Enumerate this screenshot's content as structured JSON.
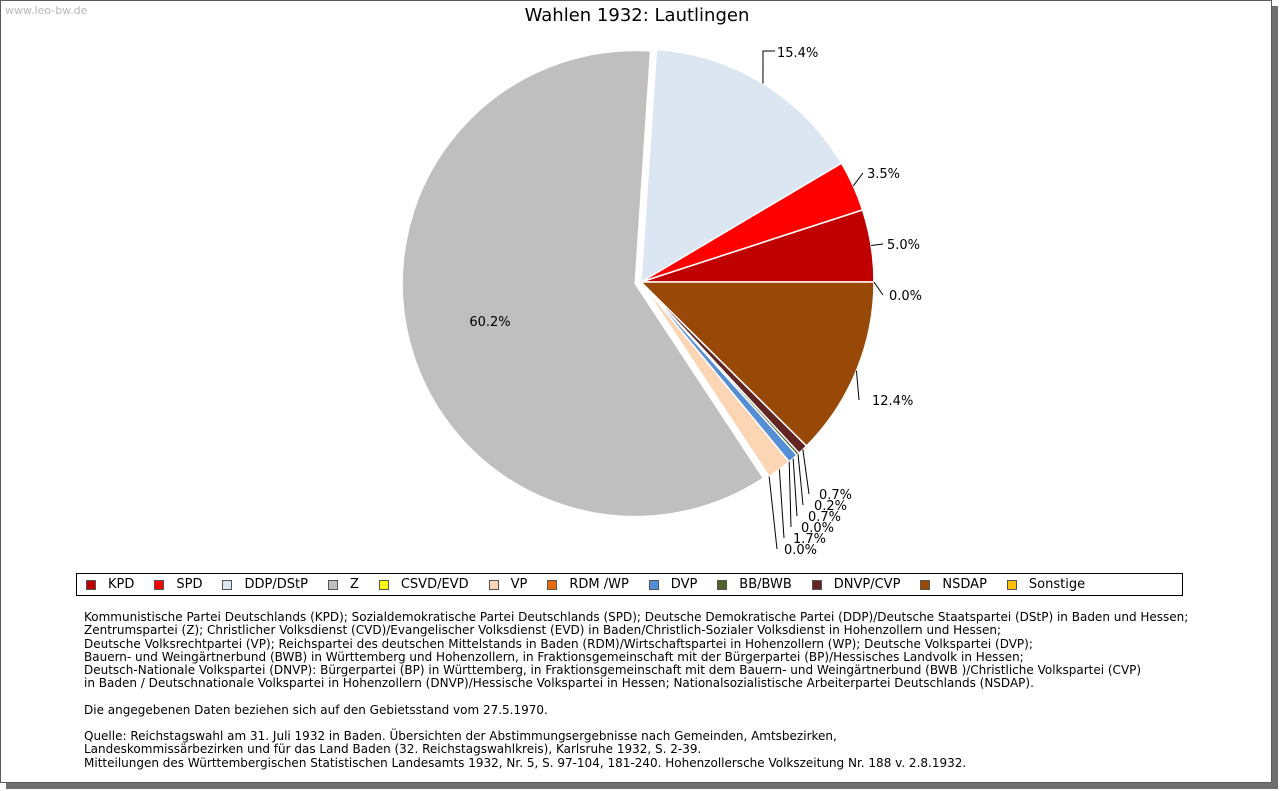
{
  "watermark": "www.leo-bw.de",
  "chart_data": {
    "type": "pie",
    "title": "Wahlen 1932: Lautlingen",
    "slices": [
      {
        "name": "KPD",
        "value": 5.0,
        "label": "5.0%",
        "color": "#c00000"
      },
      {
        "name": "SPD",
        "value": 3.5,
        "label": "3.5%",
        "color": "#ff0000"
      },
      {
        "name": "DDP/DStP",
        "value": 15.4,
        "label": "15.4%",
        "color": "#dce6f2"
      },
      {
        "name": "Z",
        "value": 60.2,
        "label": "60.2%",
        "color": "#bfbfbf"
      },
      {
        "name": "CSVD/EVD",
        "value": 0.0,
        "label": "0.0%",
        "color": "#ffff00"
      },
      {
        "name": "VP",
        "value": 1.7,
        "label": "1.7%",
        "color": "#fcd5b5"
      },
      {
        "name": "RDM /WP",
        "value": 0.0,
        "label": "0.0%",
        "color": "#e46c0a"
      },
      {
        "name": "DVP",
        "value": 0.7,
        "label": "0.7%",
        "color": "#558ed5"
      },
      {
        "name": "BB/BWB",
        "value": 0.2,
        "label": "0.2%",
        "color": "#4f6228"
      },
      {
        "name": "DNVP/CVP",
        "value": 0.7,
        "label": "0.7%",
        "color": "#632523"
      },
      {
        "name": "NSDAP",
        "value": 12.4,
        "label": "12.4%",
        "color": "#984807"
      },
      {
        "name": "Sonstige",
        "value": 0.0,
        "label": "0.0%",
        "color": "#ffc000"
      }
    ],
    "legend_position": "bottom"
  },
  "notes": {
    "parties": [
      "Kommunistische Partei Deutschlands (KPD); Sozialdemokratische Partei Deutschlands (SPD); Deutsche Demokratische Partei (DDP)/Deutsche Staatspartei (DStP) in Baden und Hessen;",
      "Zentrumspartei (Z); Christlicher Volksdienst (CVD)/Evangelischer Volksdienst (EVD) in Baden/Christlich-Sozialer Volksdienst in Hohenzollern und Hessen;",
      "Deutsche Volksrechtpartei (VP); Reichspartei des deutschen Mittelstands in Baden (RDM)/Wirtschaftspartei in Hohenzollern (WP); Deutsche Volkspartei (DVP);",
      "Bauern- und Weingärtnerbund (BWB) in Württemberg und Hohenzollern, in Fraktionsgemeinschaft mit der Bürgerpartei (BP)/Hessisches Landvolk in Hessen;",
      "Deutsch-Nationale Volkspartei (DNVP): Bürgerpartei (BP) in Württemberg, in Fraktionsgemeinschaft mit dem Bauern- und Weingärtnerbund (BWB )/Christliche Volkspartei (CVP)",
      "in Baden / Deutschnationale Volkspartei in Hohenzollern (DNVP)/Hessische Volkspartei in Hessen; Nationalsozialistische Arbeiterpartei Deutschlands (NSDAP)."
    ],
    "gebietsstand": "Die angegebenen Daten beziehen sich auf den Gebietsstand vom 27.5.1970.",
    "sources": [
      "Quelle: Reichstagswahl am 31. Juli 1932 in Baden. Übersichten der Abstimmungsergebnisse nach Gemeinden, Amtsbezirken,",
      "Landeskommissärbezirken und für das Land Baden (32. Reichstagswahlkreis), Karlsruhe 1932, S. 2-39.",
      "Mitteilungen des Württembergischen Statistischen Landesamts 1932, Nr. 5, S. 97-104, 181-240. Hohenzollersche Volkszeitung Nr. 188 v. 2.8.1932."
    ]
  }
}
